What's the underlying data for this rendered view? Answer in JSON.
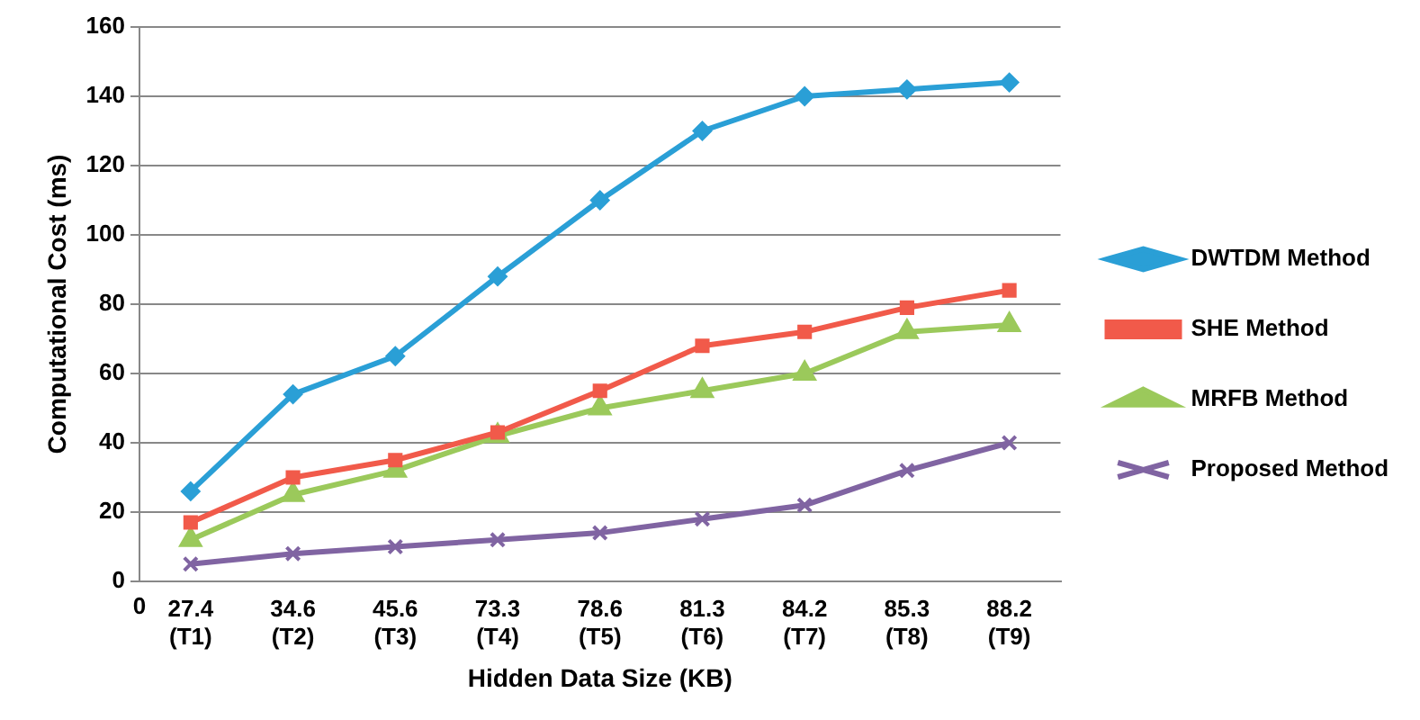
{
  "chart_data": {
    "type": "line",
    "xlabel": "Hidden Data Size (KB)",
    "ylabel": "Computational Cost (ms)",
    "categories": [
      "27.4 (T1)",
      "34.6 (T2)",
      "45.6 (T3)",
      "73.3 (T4)",
      "78.6 (T5)",
      "81.3 (T6)",
      "84.2 (T7)",
      "85.3 (T8)",
      "88.2 (T9)"
    ],
    "series": [
      {
        "name": "DWTDM Method",
        "color": "#2a9fd6",
        "marker": "diamond",
        "values": [
          26,
          54,
          65,
          88,
          110,
          130,
          140,
          142,
          144
        ]
      },
      {
        "name": "SHE Method",
        "color": "#f15a4a",
        "marker": "square",
        "values": [
          17,
          30,
          35,
          43,
          55,
          68,
          72,
          79,
          84
        ]
      },
      {
        "name": "MRFB Method",
        "color": "#9bc95b",
        "marker": "triangle",
        "values": [
          12,
          25,
          32,
          42,
          50,
          55,
          60,
          72,
          74
        ]
      },
      {
        "name": "Proposed Method",
        "color": "#8064a2",
        "marker": "cross",
        "values": [
          5,
          8,
          10,
          12,
          14,
          18,
          22,
          32,
          40
        ]
      }
    ],
    "ylim": [
      0,
      160
    ],
    "yticks": [
      0,
      20,
      40,
      60,
      80,
      100,
      120,
      140,
      160
    ],
    "grid": "y",
    "legend": "right",
    "annotations": [
      "0"
    ]
  }
}
